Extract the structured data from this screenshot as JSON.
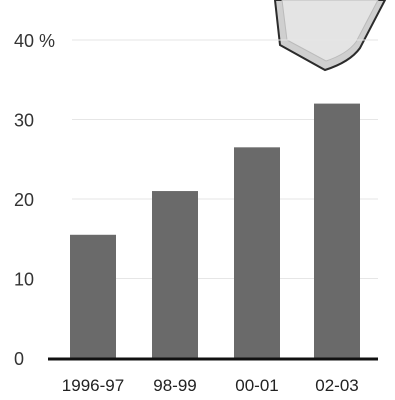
{
  "chart_data": {
    "type": "bar",
    "categories": [
      "1996-97",
      "98-99",
      "00-01",
      "02-03"
    ],
    "values": [
      15.5,
      21,
      26.5,
      32
    ],
    "title": "",
    "xlabel": "",
    "ylabel": "",
    "ylim": [
      0,
      40
    ],
    "yticks": [
      "0",
      "10",
      "20",
      "30",
      "40 %"
    ],
    "grid": true,
    "bar_color": "#6a6a6a"
  }
}
